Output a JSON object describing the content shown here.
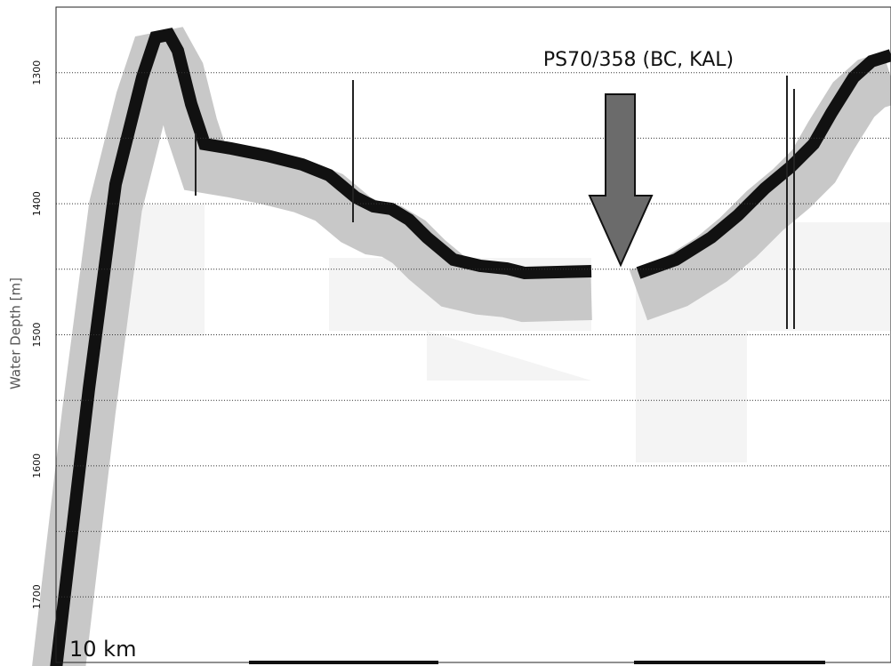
{
  "chart_data": {
    "type": "echogram",
    "ylabel": "Water Depth [m]",
    "ylim": [
      1250,
      1750
    ],
    "yticks": [
      1300,
      1400,
      1500,
      1600,
      1700
    ],
    "minor_yticks": [
      1350,
      1450,
      1550,
      1650
    ],
    "grid": true,
    "annotation": "PS70/358 (BC, KAL)",
    "scale_label": "10 km"
  }
}
